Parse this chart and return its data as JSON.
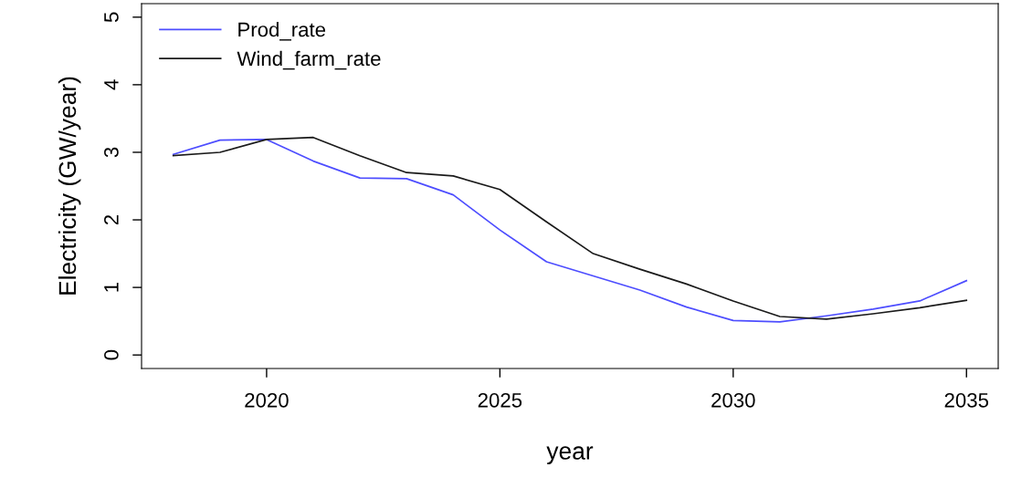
{
  "chart_data": {
    "type": "line",
    "xlabel": "year",
    "ylabel": "Electricity (GW/year)",
    "x": [
      2018,
      2019,
      2020,
      2021,
      2022,
      2023,
      2024,
      2025,
      2026,
      2027,
      2028,
      2029,
      2030,
      2031,
      2032,
      2033,
      2034,
      2035
    ],
    "series": [
      {
        "name": "Prod_rate",
        "color": "#4d4dff",
        "values": [
          2.97,
          3.18,
          3.19,
          2.87,
          2.62,
          2.61,
          2.37,
          1.85,
          1.38,
          1.17,
          0.96,
          0.71,
          0.51,
          0.49,
          0.58,
          0.68,
          0.8,
          1.1
        ]
      },
      {
        "name": "Wind_farm_rate",
        "color": "#1a1a1a",
        "values": [
          2.95,
          3.0,
          3.19,
          3.22,
          2.95,
          2.7,
          2.65,
          2.45,
          1.97,
          1.5,
          1.27,
          1.05,
          0.8,
          0.57,
          0.53,
          0.61,
          0.7,
          0.81
        ]
      }
    ],
    "xlim": [
      2017.32,
      2035.68
    ],
    "xticks": [
      2020,
      2025,
      2030,
      2035
    ],
    "ylim": [
      -0.2,
      5.2
    ],
    "yticks": [
      0,
      1,
      2,
      3,
      4,
      5
    ],
    "grid": false,
    "legend": "top left",
    "marker": "none",
    "line_style": "solid"
  }
}
